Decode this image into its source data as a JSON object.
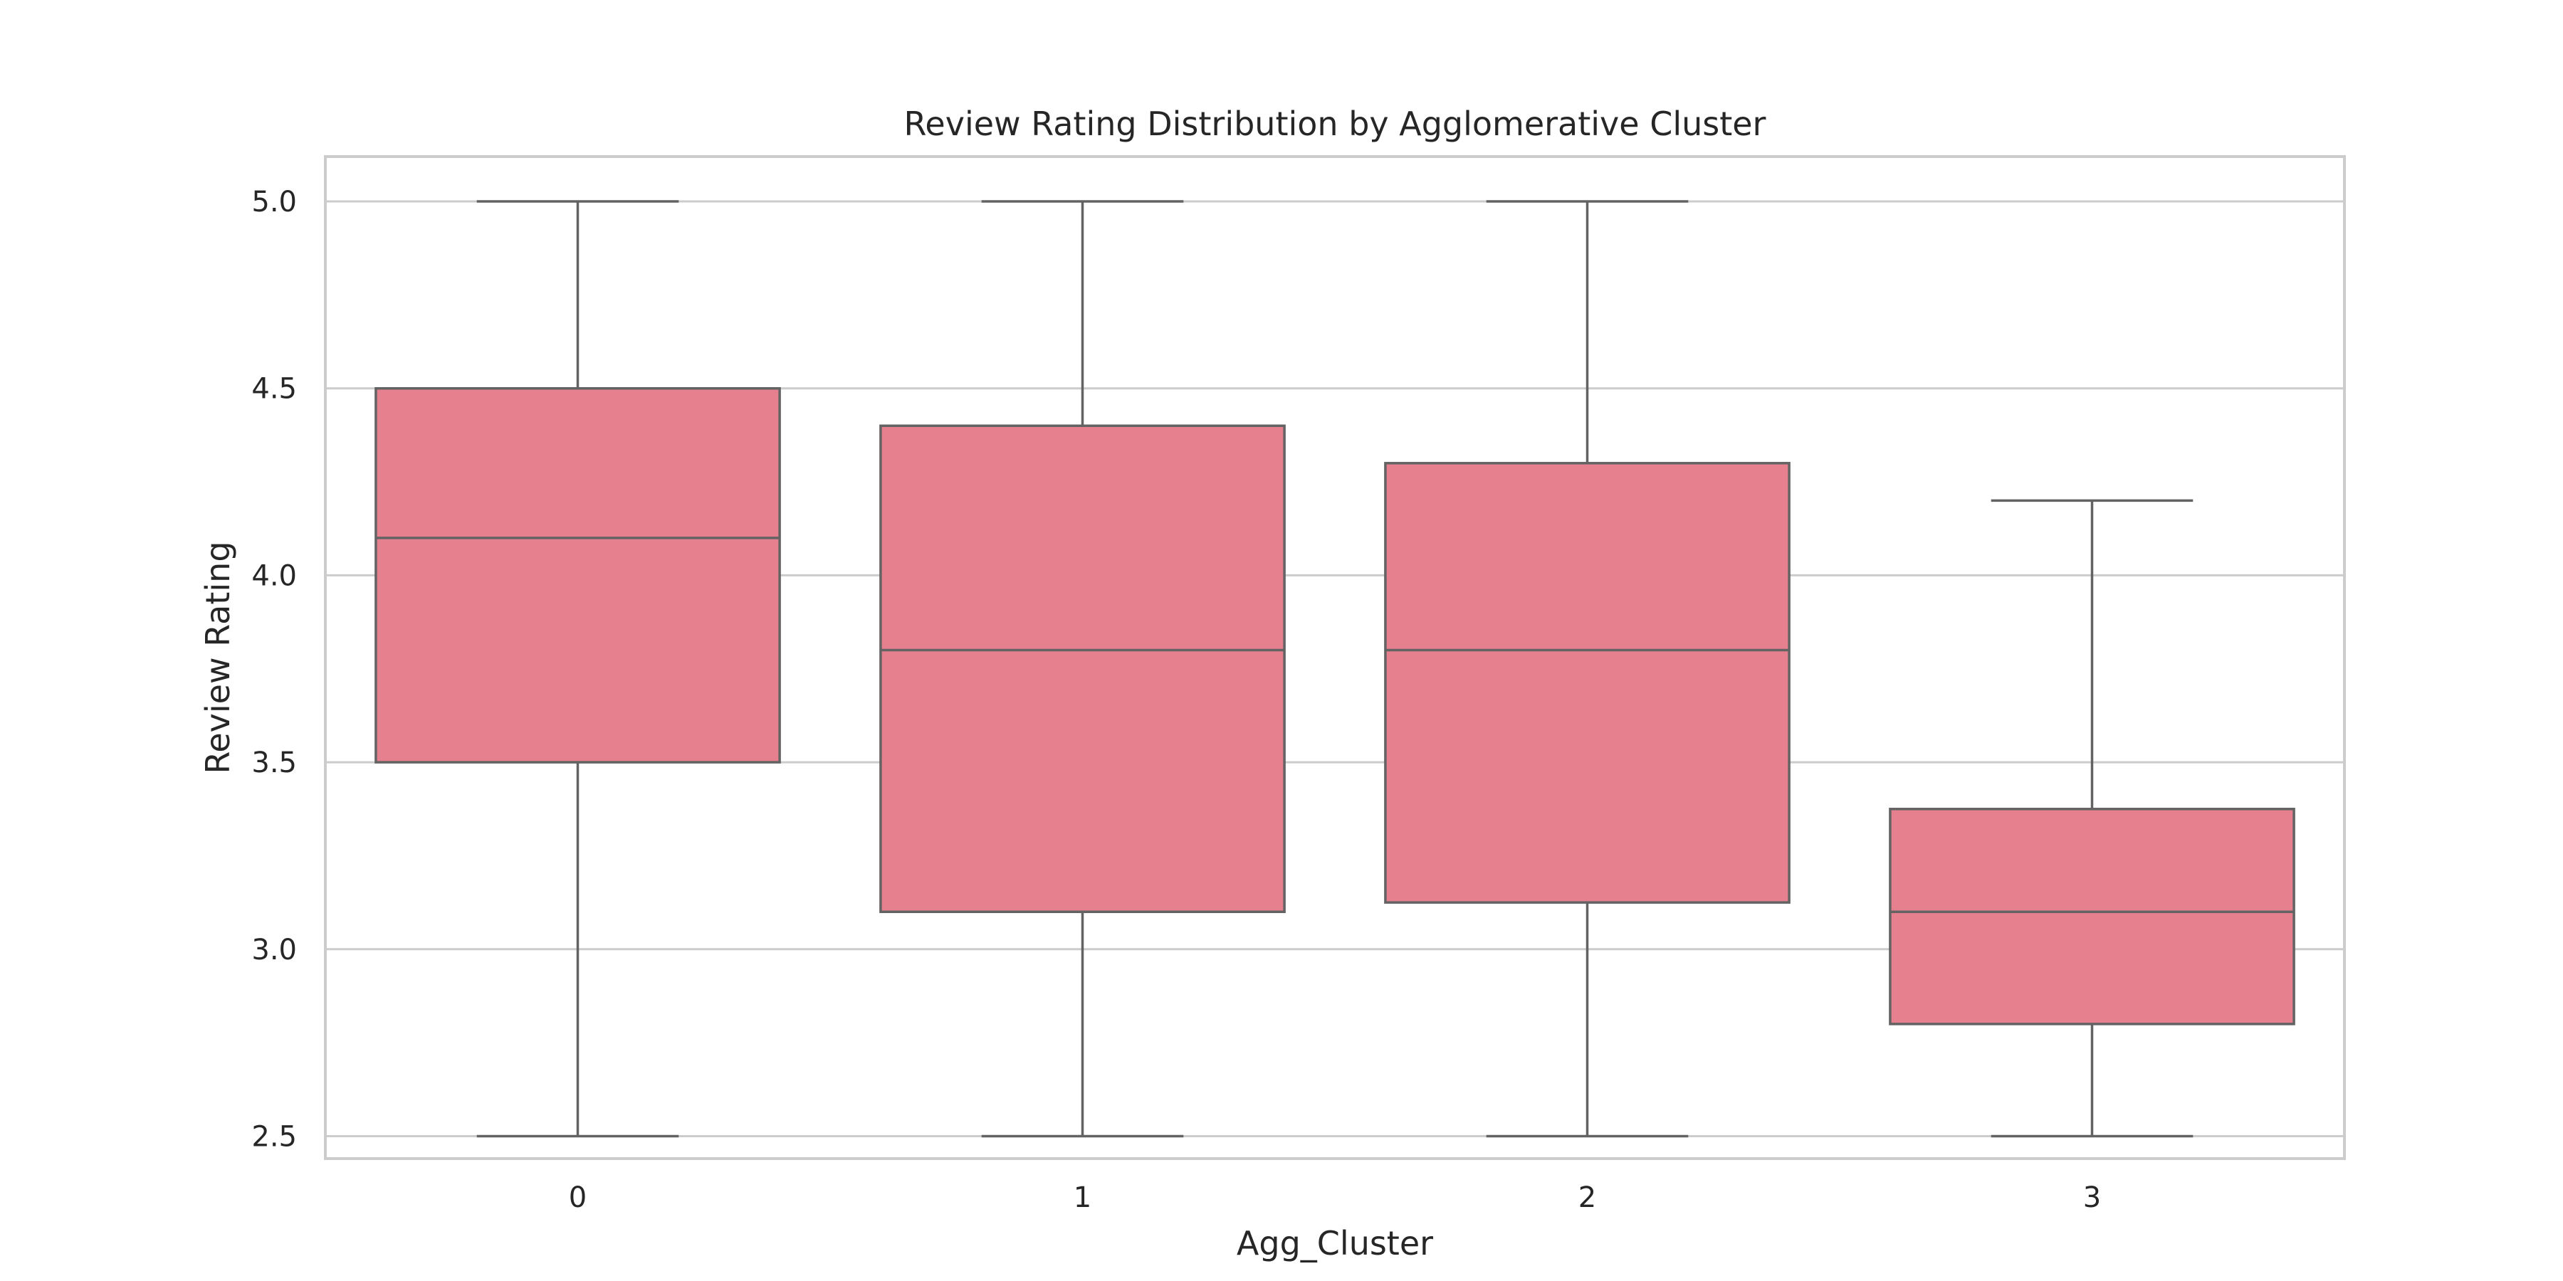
{
  "chart_data": {
    "type": "box",
    "title": "Review Rating Distribution by Agglomerative Cluster",
    "xlabel": "Agg_Cluster",
    "ylabel": "Review Rating",
    "ylim": [
      2.44,
      5.12
    ],
    "yticks": [
      "2.5",
      "3.0",
      "3.5",
      "4.0",
      "4.5",
      "5.0"
    ],
    "categories": [
      "0",
      "1",
      "2",
      "3"
    ],
    "grid": true,
    "box_color": "#e6808f",
    "line_color": "#636363",
    "boxes": [
      {
        "category": "0",
        "whisker_low": 2.5,
        "q1": 3.5,
        "median": 4.1,
        "q3": 4.5,
        "whisker_high": 5.0
      },
      {
        "category": "1",
        "whisker_low": 2.5,
        "q1": 3.1,
        "median": 3.8,
        "q3": 4.4,
        "whisker_high": 5.0
      },
      {
        "category": "2",
        "whisker_low": 2.5,
        "q1": 3.125,
        "median": 3.8,
        "q3": 4.3,
        "whisker_high": 5.0
      },
      {
        "category": "3",
        "whisker_low": 2.5,
        "q1": 2.8,
        "median": 3.1,
        "q3": 3.375,
        "whisker_high": 4.2
      }
    ]
  }
}
